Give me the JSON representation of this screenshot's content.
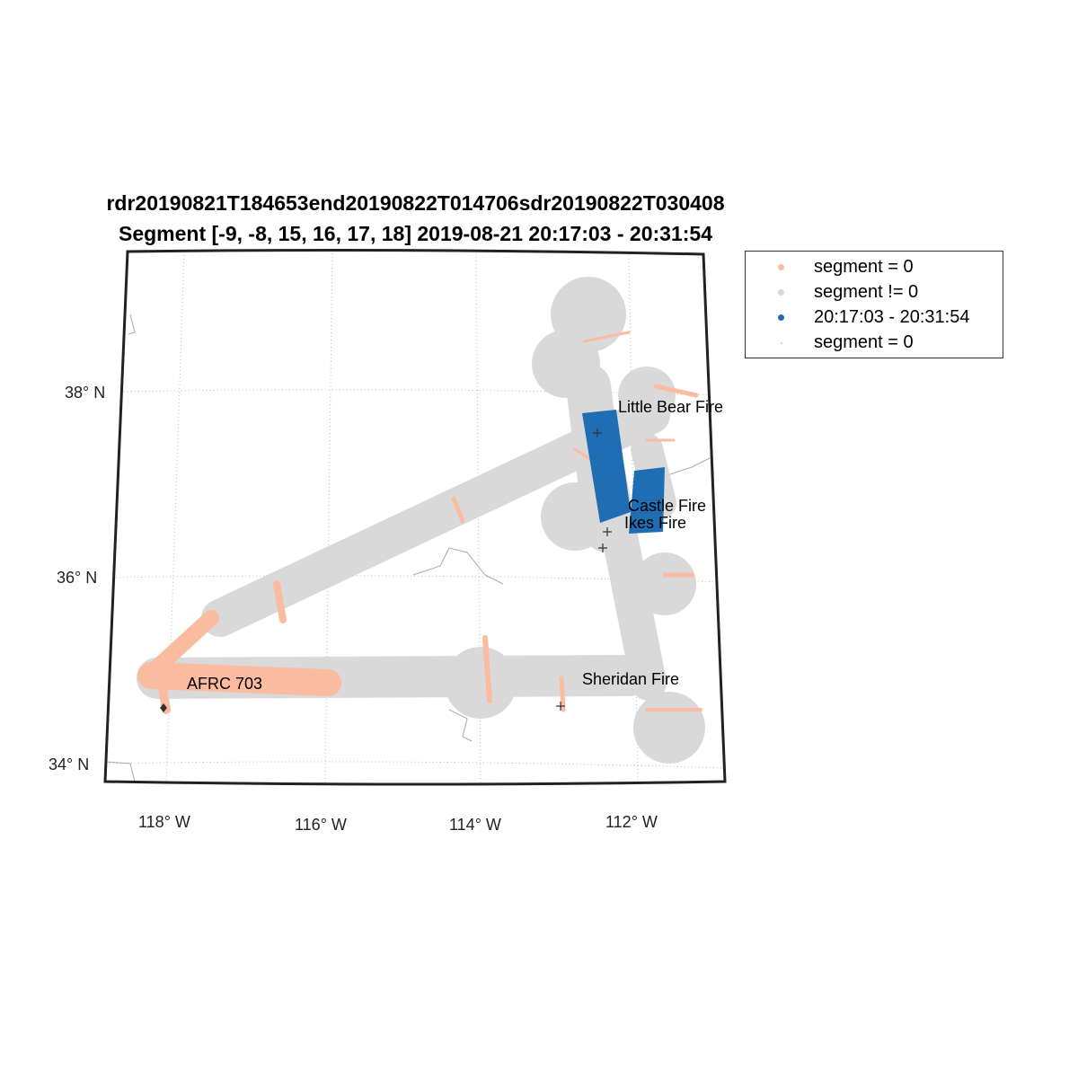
{
  "title_line1": "rdr20190821T184653end20190822T014706sdr20190822T030408",
  "title_line2": "Segment [-9, -8, 15, 16, 17, 18] 2019-08-21 20:17:03 - 20:31:54",
  "lat_ticks": [
    "38° N",
    "36° N",
    "34° N"
  ],
  "lon_ticks": [
    "118° W",
    "116° W",
    "114° W",
    "112° W"
  ],
  "places": [
    "Little Bear Fire",
    "Castle Fire",
    "Ikes Fire",
    "Sheridan Fire",
    "AFRC 703"
  ],
  "legend": [
    {
      "label": "segment = 0",
      "color": "#fbbba1"
    },
    {
      "label": "segment != 0",
      "color": "#d9d9d9"
    },
    {
      "label": "20:17:03 - 20:31:54",
      "color": "#1f6eb4"
    },
    {
      "label": "segment = 0",
      "color": "#fbbba1"
    }
  ]
}
